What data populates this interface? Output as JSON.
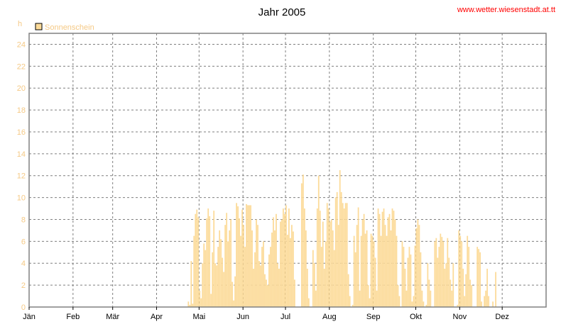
{
  "header": {
    "title": "Jahr 2005",
    "site": "www.wetter.wiesenstadt.at.tt"
  },
  "colors": {
    "bar": "#fcdb9a",
    "grid": "#7f7f7f",
    "frame": "#808080",
    "link": "#ff0000",
    "axis_text": "#f5c985"
  },
  "chart_data": {
    "type": "bar",
    "unit_label": "h",
    "legend": [
      {
        "name": "Sonnenschein",
        "color": "#fcdb9a"
      }
    ],
    "legend_position": "top-left",
    "grid": true,
    "ylim": [
      0,
      25
    ],
    "yticks": [
      0,
      2,
      4,
      6,
      8,
      10,
      12,
      14,
      16,
      18,
      20,
      22,
      24
    ],
    "xlim_days": [
      0,
      365
    ],
    "xticks": [
      {
        "label": "Jän",
        "day": 0
      },
      {
        "label": "Feb",
        "day": 31
      },
      {
        "label": "Mär",
        "day": 59
      },
      {
        "label": "Apr",
        "day": 90
      },
      {
        "label": "Mai",
        "day": 120
      },
      {
        "label": "Jun",
        "day": 151
      },
      {
        "label": "Jul",
        "day": 181
      },
      {
        "label": "Aug",
        "day": 212
      },
      {
        "label": "Sep",
        "day": 243
      },
      {
        "label": "Okt",
        "day": 273
      },
      {
        "label": "Nov",
        "day": 304
      },
      {
        "label": "Dez",
        "day": 334
      }
    ],
    "series": [
      {
        "name": "Sonnenschein",
        "start_day": 112,
        "values": [
          0.5,
          0.2,
          4.2,
          0.3,
          6.5,
          8.5,
          8.9,
          8.2,
          1.5,
          0.8,
          4.0,
          5.8,
          5.2,
          8.1,
          9.0,
          8.3,
          1.2,
          5.0,
          8.8,
          4.0,
          3.8,
          5.5,
          7.0,
          6.2,
          4.5,
          3.2,
          7.5,
          8.6,
          6.0,
          7.0,
          8.0,
          2.3,
          0.6,
          2.8,
          9.5,
          9.2,
          8.1,
          6.5,
          8.9,
          7.5,
          5.5,
          9.4,
          9.3,
          9.3,
          9.3,
          7.0,
          3.5,
          5.0,
          8.0,
          7.5,
          4.2,
          3.8,
          5.5,
          6.0,
          3.0,
          2.5,
          2.0,
          4.8,
          5.5,
          6.8,
          8.2,
          7.0,
          8.5,
          4.0,
          3.5,
          7.8,
          8.0,
          9.0,
          8.5,
          9.3,
          6.6,
          9.0,
          6.3,
          7.5,
          6.9,
          2.5,
          0.0,
          0.0,
          0.0,
          0.0,
          11.3,
          12.1,
          9.0,
          7.0,
          3.5,
          0.8,
          0.0,
          0.0,
          5.2,
          4.0,
          1.5,
          9.0,
          12.0,
          8.8,
          5.5,
          7.8,
          3.5,
          6.0,
          9.5,
          9.0,
          7.8,
          8.0,
          7.0,
          5.2,
          10.0,
          10.5,
          7.5,
          12.5,
          10.5,
          9.5,
          9.0,
          9.5,
          9.5,
          3.0,
          1.0,
          0.0,
          0.2,
          6.5,
          5.0,
          7.5,
          9.1,
          1.5,
          6.5,
          8.0,
          8.5,
          6.7,
          7.0,
          2.0,
          0.8,
          6.7,
          6.5,
          6.0,
          4.5,
          1.5,
          9.0,
          8.5,
          6.5,
          8.7,
          9.0,
          7.5,
          6.5,
          8.2,
          8.5,
          7.0,
          9.0,
          8.8,
          8.0,
          6.5,
          2.0,
          1.0,
          0.0,
          6.0,
          5.5,
          3.5,
          1.5,
          4.5,
          5.5,
          4.8,
          0.5,
          1.0,
          5.6,
          7.2,
          8.0,
          7.5,
          5.0,
          1.5,
          0.5,
          0.0,
          0.2,
          4.0,
          2.5,
          1.5,
          0.0,
          0.0,
          6.0,
          6.3,
          4.5,
          5.5,
          6.7,
          6.4,
          6.0,
          3.5,
          4.0,
          6.3,
          4.5,
          2.5,
          1.5,
          4.0,
          0.0,
          0.0,
          0.2,
          7.0,
          6.5,
          6.0,
          3.5,
          1.0,
          3.0,
          6.5,
          5.5,
          2.5,
          2.0,
          0.0,
          0.0,
          0.0,
          5.5,
          5.3,
          5.0,
          0.5,
          0.0,
          1.0,
          1.5,
          3.5,
          1.0,
          0.0,
          0.0,
          0.5,
          0.0,
          3.2
        ]
      }
    ]
  }
}
